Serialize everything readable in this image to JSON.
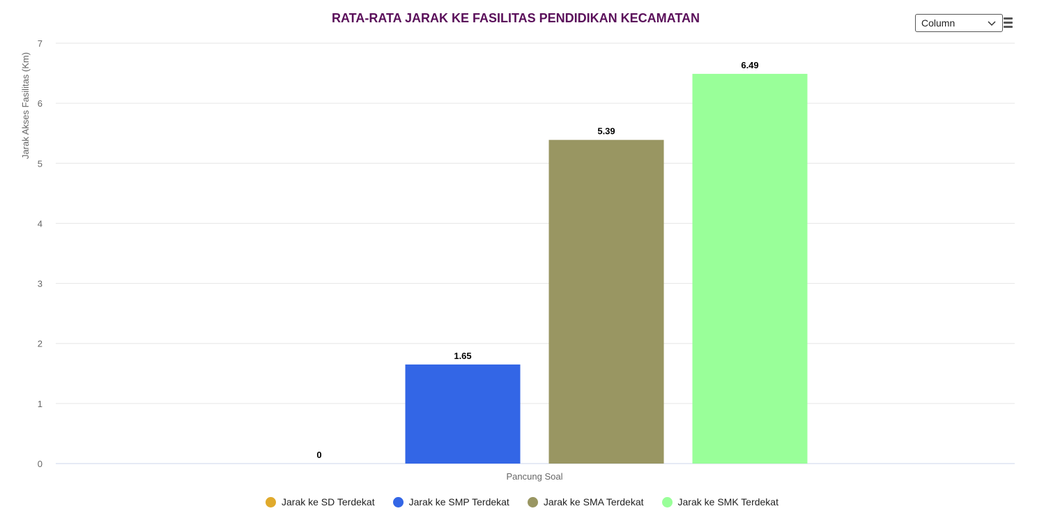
{
  "chart_data": {
    "type": "bar",
    "title": "RATA-RATA JARAK KE FASILITAS PENDIDIKAN KECAMATAN",
    "xlabel": "",
    "ylabel": "Jarak Akses Fasilitas (Km)",
    "categories": [
      "Pancung Soal"
    ],
    "ylim": [
      0,
      7
    ],
    "yticks": [
      0,
      1,
      2,
      3,
      4,
      5,
      6,
      7
    ],
    "grid": true,
    "legend_position": "bottom",
    "series": [
      {
        "name": "Jarak ke SD Terdekat",
        "values": [
          0
        ],
        "color": "#e0aa2c"
      },
      {
        "name": "Jarak ke SMP Terdekat",
        "values": [
          1.65
        ],
        "color": "#3366e6"
      },
      {
        "name": "Jarak ke SMA Terdekat",
        "values": [
          5.39
        ],
        "color": "#999662"
      },
      {
        "name": "Jarak ke SMK Terdekat",
        "values": [
          6.49
        ],
        "color": "#99ff99"
      }
    ]
  },
  "controls": {
    "chart_type_value": "Column"
  },
  "icons": {
    "dropdown": "chevron-down-icon",
    "menu": "hamburger-menu-icon"
  }
}
